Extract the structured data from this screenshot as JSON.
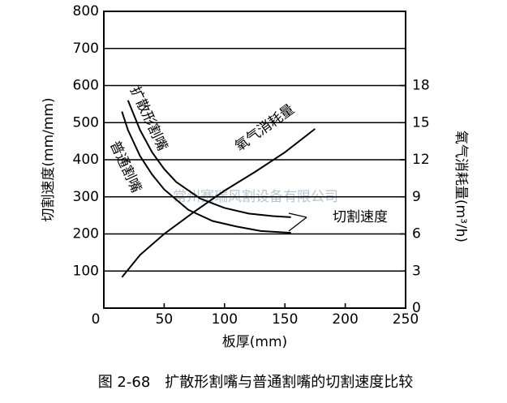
{
  "chart_data": {
    "type": "line",
    "caption": "图 2-68　扩散形割嘴与普通割嘴的切割速度比较",
    "xlabel": "板厚(mm)",
    "ylabel": "切割速度(mm/mm)",
    "y2label": "氧气消耗量(m³/h)",
    "xlim": [
      0,
      250
    ],
    "xticks": [
      0,
      50,
      100,
      150,
      200,
      250
    ],
    "ylim": [
      0,
      800
    ],
    "yticks": [
      100,
      200,
      300,
      400,
      500,
      600,
      700,
      800
    ],
    "y2lim": [
      0,
      24
    ],
    "y2ticks": [
      0,
      3,
      6,
      9,
      12,
      15,
      18
    ],
    "grid": true,
    "color": "#000000",
    "annotations": [
      "切割速度",
      "常州赛瑞风割设备有限公司"
    ],
    "series": [
      {
        "name": "扩散形割嘴",
        "color": "#000000",
        "x": [
          20,
          30,
          40,
          50,
          60,
          80,
          100,
          120,
          140,
          155
        ],
        "values": [
          560,
          480,
          420,
          375,
          340,
          295,
          270,
          255,
          248,
          245
        ]
      },
      {
        "name": "普通割嘴",
        "color": "#000000",
        "x": [
          15,
          20,
          30,
          40,
          50,
          70,
          90,
          110,
          130,
          155
        ],
        "values": [
          530,
          480,
          410,
          360,
          320,
          265,
          235,
          220,
          208,
          203
        ]
      },
      {
        "name": "氧气消耗量",
        "color": "#000000",
        "axis": "y2",
        "x": [
          15,
          30,
          50,
          75,
          100,
          125,
          150,
          175
        ],
        "values": [
          2.5,
          4.3,
          6,
          7.8,
          9.5,
          11,
          12.6,
          14.5
        ]
      }
    ]
  }
}
